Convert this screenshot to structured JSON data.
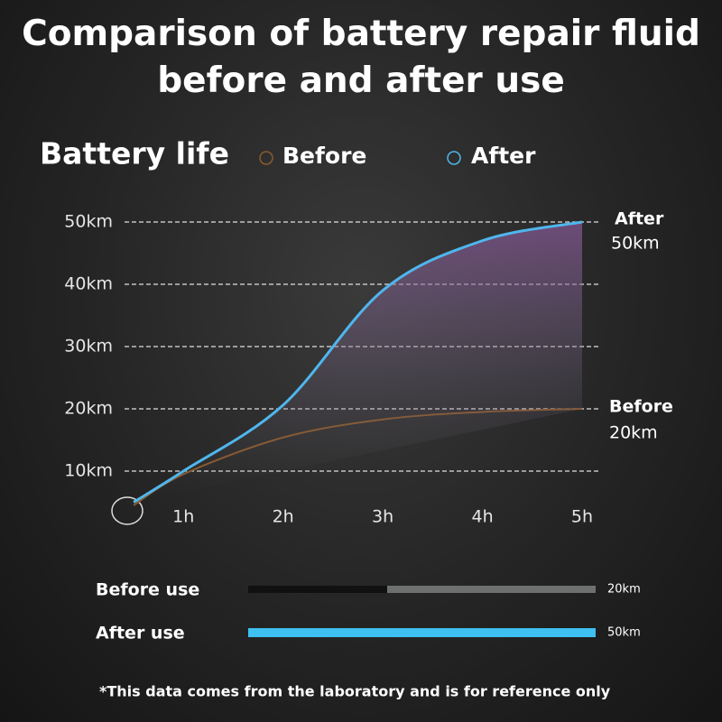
{
  "title": "Comparison of battery repair fluid before and after use",
  "footnote": "*This data comes from the laboratory and is for reference only",
  "chart_data": [
    {
      "type": "line",
      "title": "Battery life",
      "x": [
        0.5,
        1,
        2,
        3,
        4,
        5
      ],
      "series": [
        {
          "name": "Before",
          "color": "#8a5a2e",
          "values": [
            4.5,
            9.5,
            15.4,
            18.3,
            19.5,
            20
          ]
        },
        {
          "name": "After",
          "color": "#4fb6ec",
          "values": [
            5,
            10,
            20.6,
            39,
            47,
            50
          ]
        }
      ],
      "xlim": [
        0.5,
        5
      ],
      "xticks": [
        {
          "value": 1,
          "label": "1h"
        },
        {
          "value": 2,
          "label": "2h"
        },
        {
          "value": 3,
          "label": "3h"
        },
        {
          "value": 4,
          "label": "4h"
        },
        {
          "value": 5,
          "label": "5h"
        }
      ],
      "ylim": [
        0,
        50
      ],
      "yticks": [
        {
          "value": 10,
          "label": "10km"
        },
        {
          "value": 20,
          "label": "20km"
        },
        {
          "value": 30,
          "label": "30km"
        },
        {
          "value": 40,
          "label": "40km"
        },
        {
          "value": 50,
          "label": "50km"
        }
      ],
      "grid": true,
      "end_labels": [
        [
          "After",
          "50km"
        ],
        [
          "Before",
          "20km"
        ]
      ]
    },
    {
      "type": "bar",
      "orientation": "horizontal",
      "categories": [
        "Before use",
        "After use"
      ],
      "values": [
        20,
        50
      ],
      "value_labels": [
        "20km",
        "50km"
      ],
      "colors": [
        "#111111",
        "#3ec0f0"
      ],
      "xlim": [
        0,
        50
      ]
    }
  ]
}
